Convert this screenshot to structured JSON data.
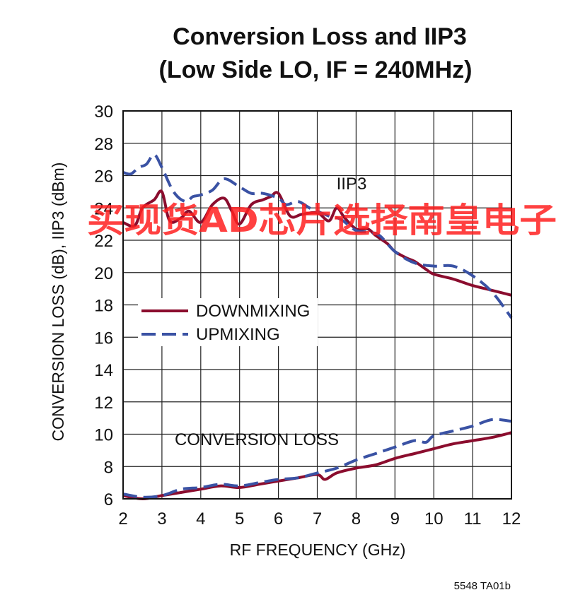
{
  "chart_data": {
    "type": "line",
    "title_line1": "Conversion Loss and IIP3",
    "title_line2": "(Low Side LO, IF = 240MHz)",
    "xlabel": "RF FREQUENCY (GHz)",
    "ylabel": "CONVERSION LOSS (dB), IIP3 (dBm)",
    "xlim": [
      2,
      12
    ],
    "ylim": [
      6,
      30
    ],
    "x_ticks": [
      2,
      3,
      4,
      5,
      6,
      7,
      8,
      9,
      10,
      11,
      12
    ],
    "y_ticks": [
      6,
      8,
      10,
      12,
      14,
      16,
      18,
      20,
      22,
      24,
      26,
      28,
      30
    ],
    "grid": true,
    "legend_position": "left-center",
    "annotations": {
      "iip3": "IIP3",
      "conversion_loss": "CONVERSION LOSS"
    },
    "series": [
      {
        "name": "DOWNMIXING",
        "style": "solid",
        "color": "#8b0d2e",
        "iip3": {
          "x": [
            2,
            2.3,
            2.5,
            2.8,
            3.0,
            3.2,
            3.5,
            3.7,
            4.0,
            4.3,
            4.6,
            4.8,
            5.0,
            5.3,
            5.6,
            5.8,
            6.0,
            6.3,
            6.6,
            7.0,
            7.3,
            7.5,
            7.7,
            8.0,
            8.3,
            8.5,
            8.8,
            9.0,
            9.3,
            9.5,
            9.8,
            10.0,
            10.5,
            11.0,
            11.5,
            12.0
          ],
          "y": [
            23.1,
            22.9,
            24.0,
            24.5,
            25.0,
            23.2,
            23.4,
            23.8,
            23.1,
            24.2,
            24.6,
            23.8,
            23.0,
            24.2,
            24.5,
            24.7,
            24.9,
            23.5,
            23.6,
            23.7,
            23.2,
            24.0,
            23.4,
            22.7,
            22.7,
            22.3,
            21.8,
            21.3,
            20.9,
            20.7,
            20.2,
            19.9,
            19.6,
            19.2,
            18.9,
            18.6
          ]
        },
        "conversion_loss": {
          "x": [
            2,
            2.5,
            3.0,
            3.5,
            4.0,
            4.5,
            5.0,
            5.5,
            6.0,
            6.5,
            7.0,
            7.2,
            7.5,
            8.0,
            8.5,
            9.0,
            9.5,
            10.0,
            10.5,
            11.0,
            11.5,
            12.0
          ],
          "y": [
            6.2,
            6.0,
            6.2,
            6.4,
            6.6,
            6.8,
            6.7,
            6.9,
            7.1,
            7.3,
            7.5,
            7.2,
            7.6,
            7.9,
            8.1,
            8.5,
            8.8,
            9.1,
            9.4,
            9.6,
            9.8,
            10.1
          ]
        }
      },
      {
        "name": "UPMIXING",
        "style": "dashed",
        "color": "#3a52a4",
        "iip3": {
          "x": [
            2,
            2.2,
            2.4,
            2.6,
            2.8,
            3.0,
            3.3,
            3.6,
            3.8,
            4.0,
            4.3,
            4.6,
            5.0,
            5.3,
            5.6,
            6.0,
            6.2,
            6.5,
            6.8,
            7.0,
            7.3,
            7.6,
            8.0,
            8.3,
            8.6,
            9.0,
            9.5,
            10.0,
            10.5,
            11.0,
            11.5,
            12.0
          ],
          "y": [
            26.2,
            26.1,
            26.5,
            26.7,
            27.3,
            26.5,
            25.0,
            24.4,
            24.7,
            24.8,
            25.1,
            25.8,
            25.3,
            24.9,
            24.9,
            24.6,
            24.2,
            24.4,
            24.0,
            23.8,
            23.5,
            23.3,
            22.6,
            22.5,
            22.3,
            21.3,
            20.6,
            20.4,
            20.4,
            19.8,
            18.8,
            17.2
          ]
        },
        "conversion_loss": {
          "x": [
            2,
            2.5,
            3.0,
            3.5,
            4.0,
            4.5,
            5.0,
            5.5,
            6.0,
            6.5,
            7.0,
            7.5,
            8.0,
            8.5,
            9.0,
            9.5,
            9.8,
            10.0,
            10.5,
            11.0,
            11.5,
            12.0
          ],
          "y": [
            6.3,
            6.1,
            6.2,
            6.6,
            6.7,
            6.9,
            6.8,
            7.0,
            7.2,
            7.3,
            7.6,
            7.9,
            8.4,
            8.8,
            9.2,
            9.6,
            9.5,
            9.9,
            10.2,
            10.5,
            10.9,
            10.8
          ]
        }
      }
    ]
  },
  "watermark": "买现货AD芯片选择南皇电子",
  "footer_code": "5548 TA01b"
}
